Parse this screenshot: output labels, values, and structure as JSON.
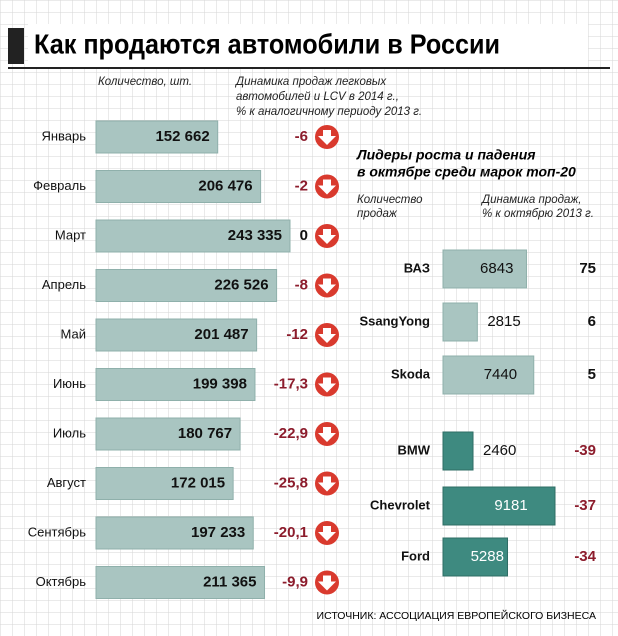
{
  "title": "Как продаются автомобили в России",
  "source": "ИСТОЧНИК: АССОЦИАЦИЯ ЕВРОПЕЙСКОГО БИЗНЕСА",
  "chart_data": [
    {
      "type": "bar",
      "orientation": "horizontal",
      "value_header": "Количество, шт.",
      "change_header": [
        "Динамика продаж легковых",
        "автомобилей и LCV в 2014 г.,",
        "% к аналогичному периоду 2013 г."
      ],
      "categories": [
        "Январь",
        "Февраль",
        "Март",
        "Апрель",
        "Май",
        "Июнь",
        "Июль",
        "Август",
        "Сентябрь",
        "Октябрь"
      ],
      "values": [
        152662,
        206476,
        243335,
        226526,
        201487,
        199398,
        180767,
        172015,
        197233,
        211365
      ],
      "value_labels": [
        "152 662",
        "206 476",
        "243 335",
        "226 526",
        "201 487",
        "199 398",
        "180 767",
        "172 015",
        "197 233",
        "211 365"
      ],
      "change": [
        -6,
        -2,
        0,
        -8,
        -12,
        -17.3,
        -22.9,
        -25.8,
        -20.1,
        -9.9
      ],
      "change_labels": [
        "-6",
        "-2",
        "0",
        "-8",
        "-12",
        "-17,3",
        "-22,9",
        "-25,8",
        "-20,1",
        "-9,9"
      ],
      "color": "#a9c5c1",
      "negative_color": "#8c1c2c",
      "arrow_color": "#d93a2e"
    },
    {
      "type": "bar",
      "orientation": "horizontal",
      "title": [
        "Лидеры роста и падения",
        "в октябре среди марок топ-20"
      ],
      "value_header": [
        "Количество",
        "продаж"
      ],
      "change_header": [
        "Динамика продаж,",
        "% к октябрю 2013 г."
      ],
      "categories": [
        "ВАЗ",
        "SsangYong",
        "Skoda",
        "BMW",
        "Chevrolet",
        "Ford"
      ],
      "values": [
        6843,
        2815,
        7440,
        2460,
        9181,
        5288
      ],
      "change": [
        75,
        6,
        5,
        -39,
        -37,
        -34
      ],
      "color": "#a9c5c1",
      "negative_color": "#3e8a80",
      "change_negative_color": "#8c1c2c"
    }
  ]
}
